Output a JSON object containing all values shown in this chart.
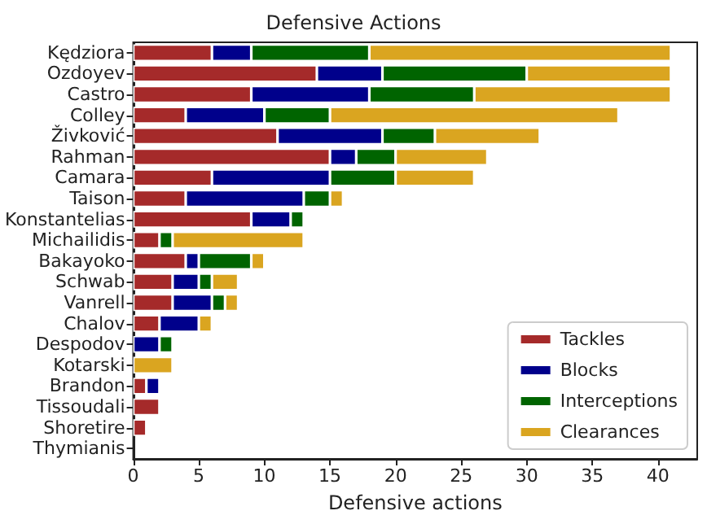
{
  "chart_data": {
    "type": "bar",
    "title": "Defensive Actions",
    "xlabel": "Defensive actions",
    "orientation": "horizontal",
    "stacked": true,
    "legend": "bottom right",
    "grid": false,
    "categories": [
      "Kędziora",
      "Ozdoyev",
      "Castro",
      "Colley",
      "Živković",
      "Rahman",
      "Camara",
      "Taison",
      "Konstantelias",
      "Michailidis",
      "Bakayoko",
      "Schwab",
      "Vanrell",
      "Chalov",
      "Despodov",
      "Kotarski",
      "Brandon",
      "Tissoudali",
      "Shoretire",
      "Thymianis"
    ],
    "xlim": [
      0,
      43
    ],
    "xticks": [
      0,
      5,
      10,
      15,
      20,
      25,
      30,
      35,
      40
    ],
    "series": [
      {
        "name": "Tackles",
        "color": "#a52a2a",
        "values": [
          6,
          14,
          9,
          4,
          11,
          15,
          6,
          4,
          9,
          2,
          4,
          3,
          3,
          2,
          0,
          0,
          1,
          2,
          1,
          0
        ]
      },
      {
        "name": "Blocks",
        "color": "#00008b",
        "values": [
          3,
          5,
          9,
          6,
          8,
          2,
          9,
          9,
          3,
          0,
          1,
          2,
          3,
          3,
          2,
          0,
          1,
          0,
          0,
          0
        ]
      },
      {
        "name": "Interceptions",
        "color": "#006400",
        "values": [
          9,
          11,
          8,
          5,
          4,
          3,
          5,
          2,
          1,
          1,
          4,
          1,
          1,
          0,
          1,
          0,
          0,
          0,
          0,
          0
        ]
      },
      {
        "name": "Clearances",
        "color": "#daa520",
        "values": [
          23,
          11,
          15,
          22,
          8,
          7,
          6,
          1,
          0,
          10,
          1,
          2,
          1,
          1,
          0,
          3,
          0,
          0,
          0,
          0
        ]
      }
    ]
  }
}
